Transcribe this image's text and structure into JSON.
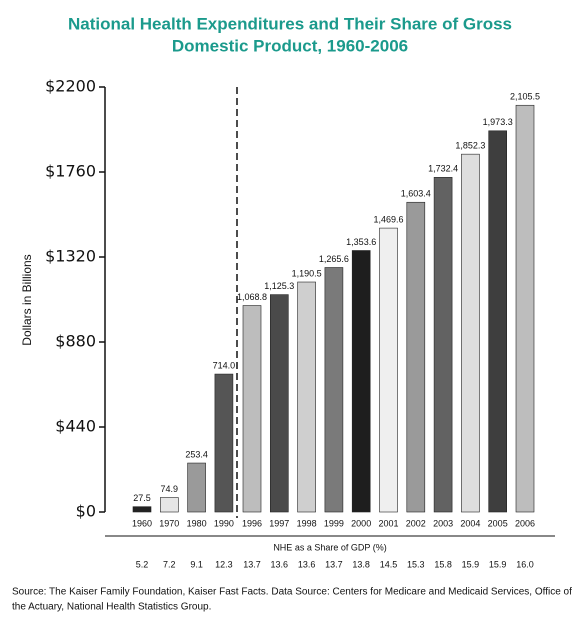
{
  "chart_data": {
    "type": "bar",
    "title": "National Health Expenditures and Their Share of Gross",
    "title_line2": "Domestic Product, 1960-2006",
    "y_label": "Dollars in Billions",
    "categories": [
      "1960",
      "1970",
      "1980",
      "1990",
      "1996",
      "1997",
      "1998",
      "1999",
      "2000",
      "2001",
      "2002",
      "2003",
      "2004",
      "2005",
      "2006"
    ],
    "values": [
      27.5,
      74.9,
      253.4,
      714.0,
      1068.8,
      1125.3,
      1190.5,
      1265.6,
      1353.6,
      1469.6,
      1603.4,
      1732.4,
      1852.3,
      1973.3,
      2105.5
    ],
    "value_labels": [
      "27.5",
      "74.9",
      "253.4",
      "714.0",
      "1,068.8",
      "1,125.3",
      "1,190.5",
      "1,265.6",
      "1,353.6",
      "1,469.6",
      "1,603.4",
      "1,732.4",
      "1,852.3",
      "1,973.3",
      "2,105.5"
    ],
    "colors": [
      "#222222",
      "#e6e6e6",
      "#9a9a9a",
      "#555555",
      "#bdbdbd",
      "#4a4a4a",
      "#cfcfcf",
      "#7a7a7a",
      "#1e1e1e",
      "#efefef",
      "#9a9a9a",
      "#626262",
      "#dedede",
      "#3e3e3e",
      "#bdbdbd"
    ],
    "ylim": [
      0,
      2200
    ],
    "yticks": [
      {
        "value": 0,
        "label": "$0"
      },
      {
        "value": 440,
        "label": "$440"
      },
      {
        "value": 880,
        "label": "$880"
      },
      {
        "value": 1320,
        "label": "$1320"
      },
      {
        "value": 1760,
        "label": "$1760"
      },
      {
        "value": 2200,
        "label": "$2200"
      }
    ],
    "gdp_share_label": "NHE as a Share of GDP (%)",
    "gdp_share": [
      "5.2",
      "7.2",
      "9.1",
      "12.3",
      "13.7",
      "13.6",
      "13.6",
      "13.7",
      "13.8",
      "14.5",
      "15.3",
      "15.8",
      "15.9",
      "15.9",
      "16.0"
    ],
    "source_line1": "Source: The Kaiser Family Foundation, Kaiser Fast Facts. Data Source: Centers for Medicare and Medicaid Services, Office of",
    "source_line2": "the Actuary, National Health Statistics Group."
  }
}
